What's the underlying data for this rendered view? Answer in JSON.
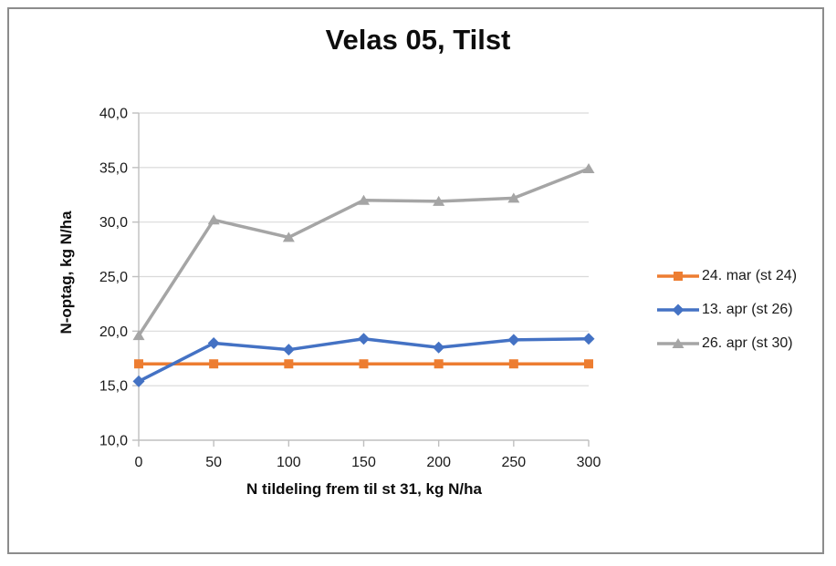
{
  "window": {
    "background": "#ffffff",
    "frame_border_color": "#8c8c8c"
  },
  "chart_data": {
    "type": "line",
    "title": "Velas 05, Tilst",
    "xlabel": "N tildeling frem til st 31, kg N/ha",
    "ylabel": "N-optag, kg N/ha",
    "x": [
      0,
      50,
      100,
      150,
      200,
      250,
      300
    ],
    "x_tick_labels": [
      "0",
      "50",
      "100",
      "150",
      "200",
      "250",
      "300"
    ],
    "y_ticks": [
      10,
      15,
      20,
      25,
      30,
      35,
      40
    ],
    "y_tick_labels": [
      "10,0",
      "15,0",
      "20,0",
      "25,0",
      "30,0",
      "35,0",
      "40,0"
    ],
    "xlim": [
      0,
      300
    ],
    "ylim": [
      10,
      40
    ],
    "grid": true,
    "legend_position": "right",
    "series": [
      {
        "name": "24. mar (st 24)",
        "marker": "square",
        "color": "#ED7D31",
        "values": [
          17.0,
          17.0,
          17.0,
          17.0,
          17.0,
          17.0,
          17.0
        ]
      },
      {
        "name": "13. apr (st 26)",
        "marker": "diamond",
        "color": "#4472C4",
        "values": [
          15.4,
          18.9,
          18.3,
          19.3,
          18.5,
          19.2,
          19.3
        ]
      },
      {
        "name": "26. apr (st 30)",
        "marker": "triangle",
        "color": "#A5A5A5",
        "values": [
          19.6,
          30.2,
          28.6,
          32.0,
          31.9,
          32.2,
          34.9
        ]
      }
    ],
    "colors": {
      "gridline": "#D9D9D9",
      "axis": "#BFBFBF",
      "tick_text": "#1a1a1a",
      "title_text": "#0d0d0d"
    }
  }
}
